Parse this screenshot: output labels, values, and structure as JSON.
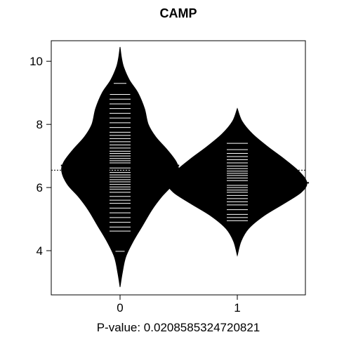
{
  "chart_data": {
    "type": "beanplot",
    "title": "CAMP",
    "xlabel": "P-value: 0.0208585324720821",
    "ylabel": "",
    "categories": [
      "0",
      "1"
    ],
    "y_ticks": [
      4,
      6,
      8,
      10
    ],
    "ylim": [
      2.6,
      10.65
    ],
    "overall_mean": 6.55,
    "grid": false,
    "series": [
      {
        "group": "0",
        "mean": 6.7,
        "density": [
          [
            2.85,
            0.0
          ],
          [
            3.3,
            0.012
          ],
          [
            3.8,
            0.03
          ],
          [
            4.3,
            0.07
          ],
          [
            4.8,
            0.12
          ],
          [
            5.3,
            0.17
          ],
          [
            5.7,
            0.22
          ],
          [
            6.1,
            0.28
          ],
          [
            6.5,
            0.31
          ],
          [
            6.8,
            0.3
          ],
          [
            7.2,
            0.25
          ],
          [
            7.6,
            0.19
          ],
          [
            8.0,
            0.15
          ],
          [
            8.5,
            0.13
          ],
          [
            9.0,
            0.095
          ],
          [
            9.4,
            0.05
          ],
          [
            9.8,
            0.02
          ],
          [
            10.1,
            0.008
          ],
          [
            10.45,
            0.0
          ]
        ],
        "observations": [
          3.98,
          4.62,
          4.75,
          4.9,
          5.05,
          5.2,
          5.35,
          5.5,
          5.6,
          5.72,
          5.85,
          5.95,
          6.02,
          6.1,
          6.18,
          6.25,
          6.33,
          6.4,
          6.48,
          6.55,
          6.62,
          6.7,
          6.78,
          6.85,
          6.92,
          7.0,
          7.08,
          7.15,
          7.25,
          7.35,
          7.45,
          7.55,
          7.65,
          7.75,
          7.9,
          8.05,
          8.2,
          8.35,
          8.5,
          8.65,
          8.8,
          8.95,
          9.3
        ]
      },
      {
        "group": "1",
        "mean": 6.15,
        "density": [
          [
            3.85,
            0.0
          ],
          [
            4.3,
            0.02
          ],
          [
            4.7,
            0.06
          ],
          [
            5.1,
            0.14
          ],
          [
            5.5,
            0.25
          ],
          [
            5.85,
            0.34
          ],
          [
            6.15,
            0.37
          ],
          [
            6.5,
            0.33
          ],
          [
            6.9,
            0.25
          ],
          [
            7.3,
            0.16
          ],
          [
            7.7,
            0.08
          ],
          [
            8.1,
            0.025
          ],
          [
            8.5,
            0.0
          ]
        ],
        "observations": [
          4.95,
          5.05,
          5.15,
          5.3,
          5.45,
          5.55,
          5.65,
          5.75,
          5.85,
          5.92,
          6.0,
          6.07,
          6.15,
          6.22,
          6.3,
          6.38,
          6.45,
          6.52,
          6.6,
          6.68,
          6.78,
          6.88,
          6.98,
          7.08,
          7.2,
          7.4
        ]
      }
    ]
  }
}
